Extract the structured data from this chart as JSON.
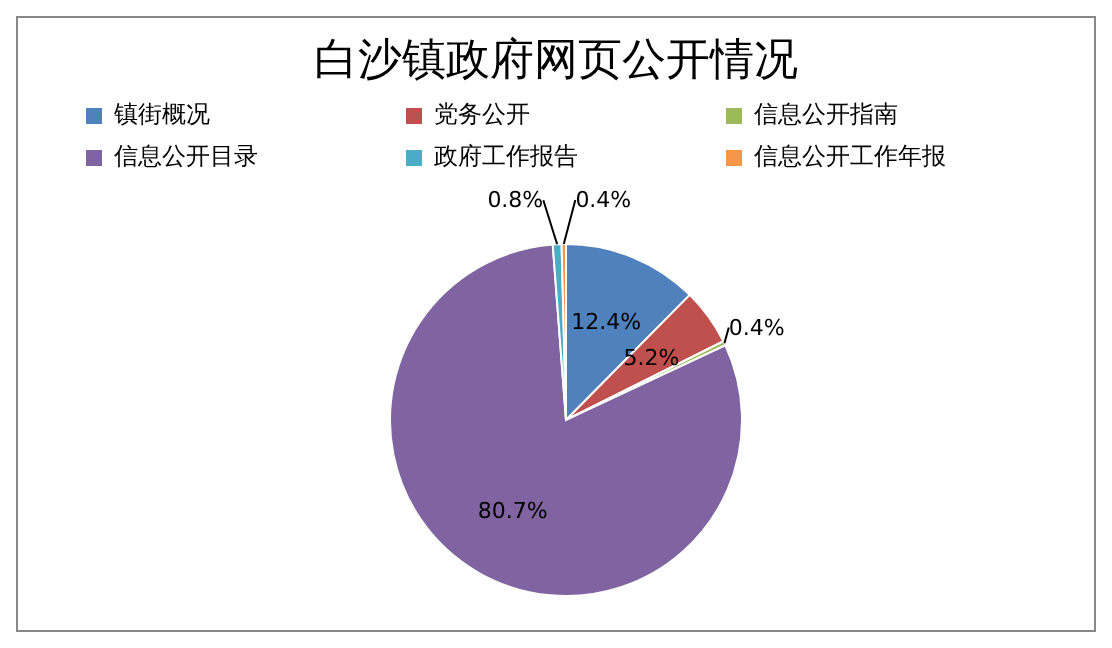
{
  "chart_data": {
    "type": "pie",
    "title": "白沙镇政府网页公开情况",
    "categories": [
      "镇街概况",
      "党务公开",
      "信息公开指南",
      "信息公开目录",
      "政府工作报告",
      "信息公开工作年报"
    ],
    "values": [
      12.4,
      5.2,
      0.4,
      80.7,
      0.8,
      0.4
    ],
    "colors": [
      "#4f81bd",
      "#c0504d",
      "#9bbb59",
      "#8064a2",
      "#4bacc6",
      "#f79646"
    ],
    "value_labels": [
      "12.4%",
      "5.2%",
      "0.4%",
      "80.7%",
      "0.8%",
      "0.4%"
    ],
    "legend": "top"
  }
}
